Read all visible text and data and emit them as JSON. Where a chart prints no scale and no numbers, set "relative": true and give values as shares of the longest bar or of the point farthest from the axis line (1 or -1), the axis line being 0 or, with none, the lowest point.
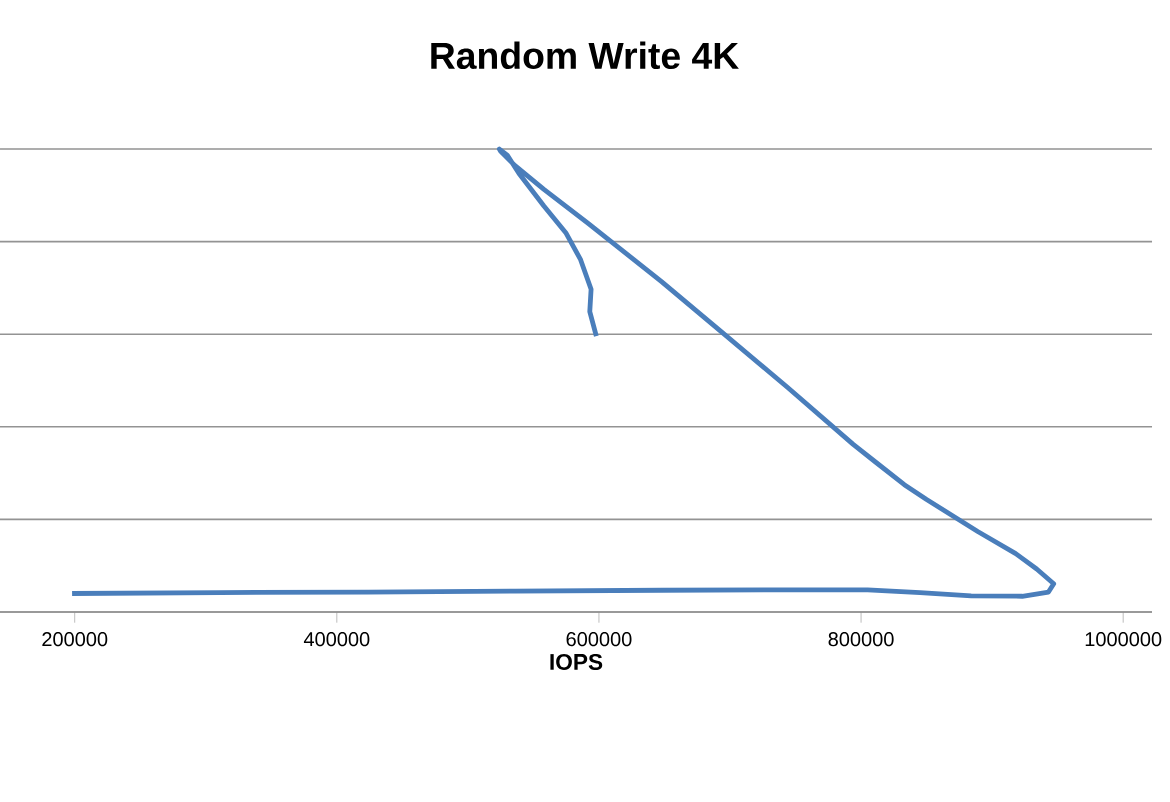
{
  "chart_data": {
    "type": "line",
    "title": "Random Write 4K",
    "xlabel": "IOPS",
    "relative": true,
    "grid": "y",
    "xlim": [
      143000,
      1022000
    ],
    "xticks": [
      200000,
      400000,
      600000,
      800000,
      1000000
    ],
    "series": [
      {
        "color": "#4a7ebb",
        "x": [
          198000,
          311000,
          424000,
          536000,
          648000,
          760000,
          805000,
          845000,
          884000,
          923000,
          943000,
          947000,
          934000,
          918000,
          889000,
          850000,
          833000,
          811000,
          794000,
          744000,
          696000,
          648000,
          592000,
          558000,
          536000,
          525000,
          524000,
          530000,
          539000,
          558000,
          575000,
          586000,
          594000,
          593000,
          598000
        ],
        "values": [
          0.04,
          0.042,
          0.043,
          0.045,
          0.047,
          0.048,
          0.048,
          0.042,
          0.035,
          0.034,
          0.043,
          0.061,
          0.093,
          0.126,
          0.174,
          0.243,
          0.275,
          0.324,
          0.362,
          0.485,
          0.599,
          0.713,
          0.839,
          0.913,
          0.964,
          0.995,
          1,
          0.987,
          0.947,
          0.877,
          0.818,
          0.761,
          0.697,
          0.649,
          0.596
        ]
      }
    ]
  }
}
